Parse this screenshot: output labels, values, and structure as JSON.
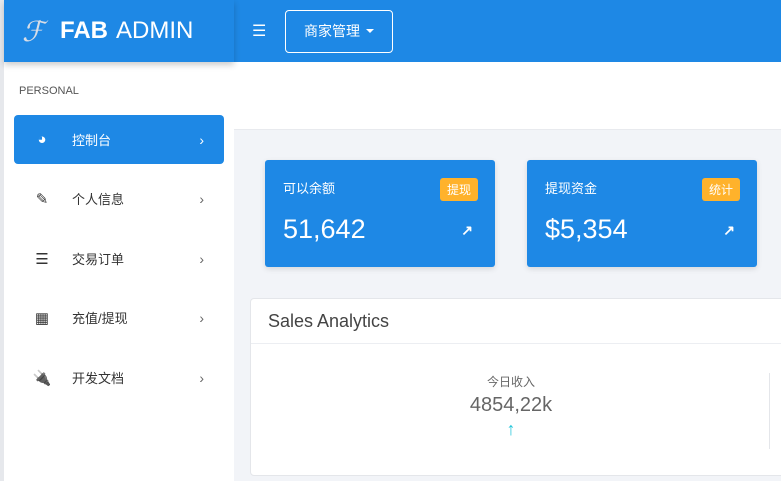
{
  "brand": {
    "bold": "FAB",
    "rest": "ADMIN",
    "logo_letter": "F"
  },
  "topbar": {
    "menu_icon": "hamburger-icon",
    "dropdown_label": "商家管理"
  },
  "sidebar": {
    "section": "PERSONAL",
    "items": [
      {
        "label": "控制台",
        "icon": "dashboard-icon",
        "glyph": "◕",
        "active": true
      },
      {
        "label": "个人信息",
        "icon": "edit-icon",
        "glyph": "✎"
      },
      {
        "label": "交易订单",
        "icon": "list-icon",
        "glyph": "☰"
      },
      {
        "label": "充值/提现",
        "icon": "table-icon",
        "glyph": "▦"
      },
      {
        "label": "开发文档",
        "icon": "plug-icon",
        "glyph": "🔌"
      }
    ]
  },
  "cards": [
    {
      "title": "可以余额",
      "badge": "提现",
      "value": "51,642",
      "trend_icon": "trend-up-icon"
    },
    {
      "title": "提现资金",
      "badge": "统计",
      "value": "$5,354",
      "trend_icon": "trend-up-icon"
    }
  ],
  "sales": {
    "title": "Sales Analytics",
    "stat_label": "今日收入",
    "stat_value": "4854,22k",
    "stat_icon": "arrow-up-icon"
  },
  "colors": {
    "primary": "#1e88e5",
    "badge": "#ffb22b",
    "up": "#26c6da"
  }
}
